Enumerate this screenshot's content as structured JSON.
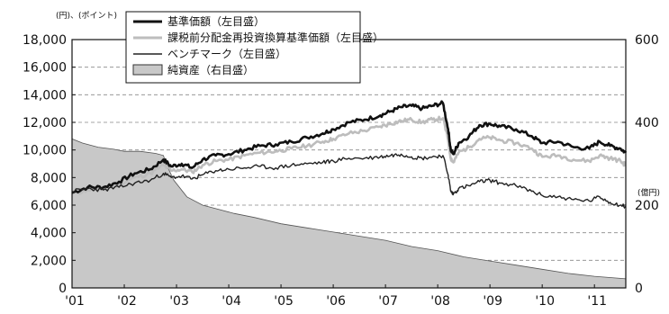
{
  "chart_data": {
    "type": "line",
    "title": "",
    "left_axis_unit": "(円)、(ポイント)",
    "right_axis_unit": "(億円)",
    "x_ticks": [
      "'01",
      "'02",
      "'03",
      "'04",
      "'05",
      "'06",
      "'07",
      "'08",
      "'09",
      "'10",
      "'11"
    ],
    "x_range": [
      2001.0,
      2011.6
    ],
    "left_ylim": [
      0,
      18000
    ],
    "left_yticks": [
      "0",
      "2,000",
      "4,000",
      "6,000",
      "8,000",
      "10,000",
      "12,000",
      "14,000",
      "16,000",
      "18,000"
    ],
    "right_ylim": [
      0,
      600
    ],
    "right_yticks": [
      "0",
      "200",
      "400",
      "600"
    ],
    "grid": "horizontal dashed",
    "legend_position": "top-center",
    "legend": [
      {
        "label": "基準価額（左目盛）",
        "style": "thick-black-line"
      },
      {
        "label": "課税前分配金再投資換算基準価額（左目盛）",
        "style": "light-gray-line"
      },
      {
        "label": "ベンチマーク（左目盛）",
        "style": "thin-black-line"
      },
      {
        "label": "純資産（右目盛）",
        "style": "gray-area"
      }
    ],
    "series": [
      {
        "name": "基準価額（左目盛）",
        "axis": "left",
        "color": "#111111",
        "x": [
          2001.0,
          2001.3,
          2001.6,
          2001.9,
          2002.2,
          2002.5,
          2002.75,
          2002.9,
          2003.1,
          2003.3,
          2003.5,
          2003.75,
          2004.0,
          2004.3,
          2004.6,
          2004.9,
          2005.2,
          2005.5,
          2005.8,
          2006.0,
          2006.3,
          2006.6,
          2006.9,
          2007.1,
          2007.3,
          2007.5,
          2007.7,
          2007.9,
          2008.1,
          2008.2,
          2008.25,
          2008.3,
          2008.4,
          2008.6,
          2008.8,
          2009.0,
          2009.2,
          2009.5,
          2009.8,
          2010.0,
          2010.3,
          2010.6,
          2010.9,
          2011.1,
          2011.3,
          2011.5,
          2011.6
        ],
        "y": [
          6900,
          7300,
          7300,
          7700,
          8300,
          8600,
          9300,
          8800,
          9000,
          8700,
          9300,
          9600,
          9700,
          10000,
          10300,
          10400,
          10600,
          10900,
          11200,
          11500,
          12000,
          12200,
          12500,
          12800,
          13100,
          13200,
          13000,
          13200,
          13400,
          11500,
          10000,
          9700,
          10500,
          11000,
          11800,
          11900,
          11700,
          11500,
          11000,
          10500,
          10600,
          10200,
          10100,
          10600,
          10300,
          10100,
          9800
        ]
      },
      {
        "name": "課税前分配金再投資換算基準価額（左目盛）",
        "axis": "left",
        "color": "#bdbdbd",
        "x": [
          2001.0,
          2001.3,
          2001.6,
          2001.9,
          2002.2,
          2002.5,
          2002.75,
          2002.9,
          2003.1,
          2003.3,
          2003.5,
          2003.75,
          2004.0,
          2004.3,
          2004.6,
          2004.9,
          2005.2,
          2005.5,
          2005.8,
          2006.0,
          2006.3,
          2006.6,
          2006.9,
          2007.1,
          2007.3,
          2007.5,
          2007.7,
          2007.9,
          2008.1,
          2008.2,
          2008.25,
          2008.3,
          2008.4,
          2008.6,
          2008.8,
          2009.0,
          2009.2,
          2009.5,
          2009.8,
          2010.0,
          2010.3,
          2010.6,
          2010.9,
          2011.1,
          2011.3,
          2011.5,
          2011.6
        ],
        "y": [
          6800,
          7100,
          7100,
          7500,
          8000,
          8300,
          8900,
          8500,
          8600,
          8400,
          8900,
          9200,
          9300,
          9600,
          9800,
          9900,
          10100,
          10300,
          10600,
          10800,
          11200,
          11400,
          11700,
          11900,
          12100,
          12200,
          12000,
          12200,
          12300,
          10700,
          9400,
          9100,
          9800,
          10200,
          10800,
          10900,
          10700,
          10500,
          10100,
          9500,
          9600,
          9300,
          9200,
          9600,
          9400,
          9200,
          8900
        ]
      },
      {
        "name": "ベンチマーク（左目盛）",
        "axis": "left",
        "color": "#222222",
        "x": [
          2001.0,
          2001.3,
          2001.6,
          2001.9,
          2002.2,
          2002.5,
          2002.75,
          2002.9,
          2003.1,
          2003.3,
          2003.5,
          2003.75,
          2004.0,
          2004.3,
          2004.6,
          2004.9,
          2005.2,
          2005.5,
          2005.8,
          2006.0,
          2006.3,
          2006.6,
          2006.9,
          2007.1,
          2007.3,
          2007.5,
          2007.7,
          2007.9,
          2008.1,
          2008.2,
          2008.25,
          2008.3,
          2008.4,
          2008.6,
          2008.8,
          2009.0,
          2009.2,
          2009.5,
          2009.8,
          2010.0,
          2010.3,
          2010.6,
          2010.9,
          2011.1,
          2011.3,
          2011.5,
          2011.6
        ],
        "y": [
          7000,
          7200,
          7100,
          7300,
          7600,
          7800,
          8300,
          8000,
          8100,
          7900,
          8200,
          8500,
          8600,
          8700,
          8800,
          8700,
          8900,
          9000,
          9100,
          9200,
          9400,
          9400,
          9500,
          9600,
          9700,
          9500,
          9400,
          9500,
          9600,
          8200,
          7000,
          6800,
          7200,
          7400,
          7700,
          7800,
          7600,
          7400,
          7000,
          6700,
          6600,
          6400,
          6300,
          6600,
          6200,
          6000,
          5900
        ]
      },
      {
        "name": "純資産（右目盛）",
        "axis": "right",
        "type": "area",
        "color": "#c8c8c8",
        "x": [
          2001.0,
          2001.2,
          2001.5,
          2001.8,
          2002.0,
          2002.3,
          2002.6,
          2002.75,
          2002.8,
          2002.95,
          2003.2,
          2003.5,
          2003.8,
          2004.1,
          2004.5,
          2005.0,
          2005.5,
          2006.0,
          2006.5,
          2007.0,
          2007.5,
          2008.0,
          2008.5,
          2009.0,
          2009.5,
          2010.0,
          2010.5,
          2011.0,
          2011.6
        ],
        "y": [
          360,
          350,
          340,
          335,
          330,
          330,
          325,
          320,
          300,
          260,
          220,
          200,
          190,
          180,
          170,
          155,
          145,
          135,
          125,
          115,
          100,
          90,
          75,
          65,
          55,
          45,
          35,
          28,
          22
        ]
      }
    ]
  }
}
